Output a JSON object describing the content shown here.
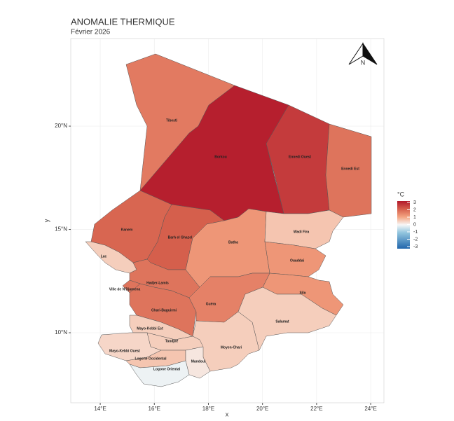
{
  "title": "ANOMALIE THERMIQUE",
  "subtitle": "Février 2026",
  "x_label": "x",
  "y_label": "y",
  "north": "N",
  "xlim": [
    12.91,
    24.49
  ],
  "ylim": [
    6.61,
    24.24
  ],
  "xticks": [
    {
      "value": 14,
      "label": "14°E"
    },
    {
      "value": 16,
      "label": "16°E"
    },
    {
      "value": 18,
      "label": "18°E"
    },
    {
      "value": 20,
      "label": "20°E"
    },
    {
      "value": 22,
      "label": "22°E"
    },
    {
      "value": 24,
      "label": "24°E"
    }
  ],
  "yticks": [
    {
      "value": 10,
      "label": "10°N"
    },
    {
      "value": 15,
      "label": "15°N"
    },
    {
      "value": 20,
      "label": "20°N"
    }
  ],
  "legend": {
    "title": "°C",
    "lim": [
      -3,
      3
    ],
    "ticks": [
      3,
      2,
      1,
      0,
      -1,
      -2,
      -3
    ]
  },
  "regions": [
    {
      "name": "Tibesti",
      "value": 1.6
    },
    {
      "name": "Borkou",
      "value": 2.9
    },
    {
      "name": "Ennedi Ouest",
      "value": 2.5
    },
    {
      "name": "Ennedi Est",
      "value": 1.7
    },
    {
      "name": "Kanem",
      "value": 1.9
    },
    {
      "name": "Barh el Ghazel",
      "value": 2.0
    },
    {
      "name": "Batha",
      "value": 1.2
    },
    {
      "name": "Wadi Fira",
      "value": 0.6
    },
    {
      "name": "Ouaddai",
      "value": 1.2
    },
    {
      "name": "Sila",
      "value": 1.2
    },
    {
      "name": "Lac",
      "value": 0.5
    },
    {
      "name": "Hadjer-Lamis",
      "value": 1.7
    },
    {
      "name": "Ville de N'Djamena",
      "value": 1.7
    },
    {
      "name": "Chari-Baguirmi",
      "value": 1.7
    },
    {
      "name": "Guéra",
      "value": 1.5
    },
    {
      "name": "Salamat",
      "value": 0.5
    },
    {
      "name": "Moyen-Chari",
      "value": 0.5
    },
    {
      "name": "Mayo-Kebbi Est",
      "value": 0.5
    },
    {
      "name": "Tandjilé",
      "value": 0.5
    },
    {
      "name": "Mayo-Kebbi Ouest",
      "value": 0.4
    },
    {
      "name": "Logone Occidental",
      "value": 0.6
    },
    {
      "name": "Mandoul",
      "value": 0.2
    },
    {
      "name": "Logone Oriental",
      "value": -0.1
    }
  ]
}
